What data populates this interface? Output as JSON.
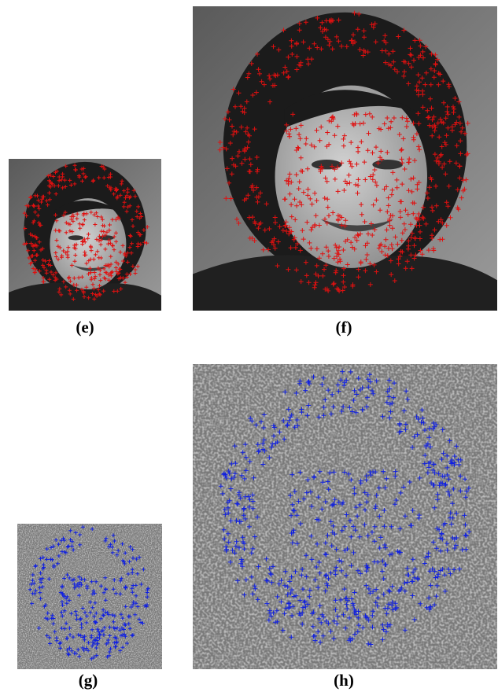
{
  "panels": [
    {
      "label": "(e)"
    },
    {
      "label": "(f)"
    },
    {
      "label": "(g)"
    },
    {
      "label": "(h)"
    }
  ]
}
